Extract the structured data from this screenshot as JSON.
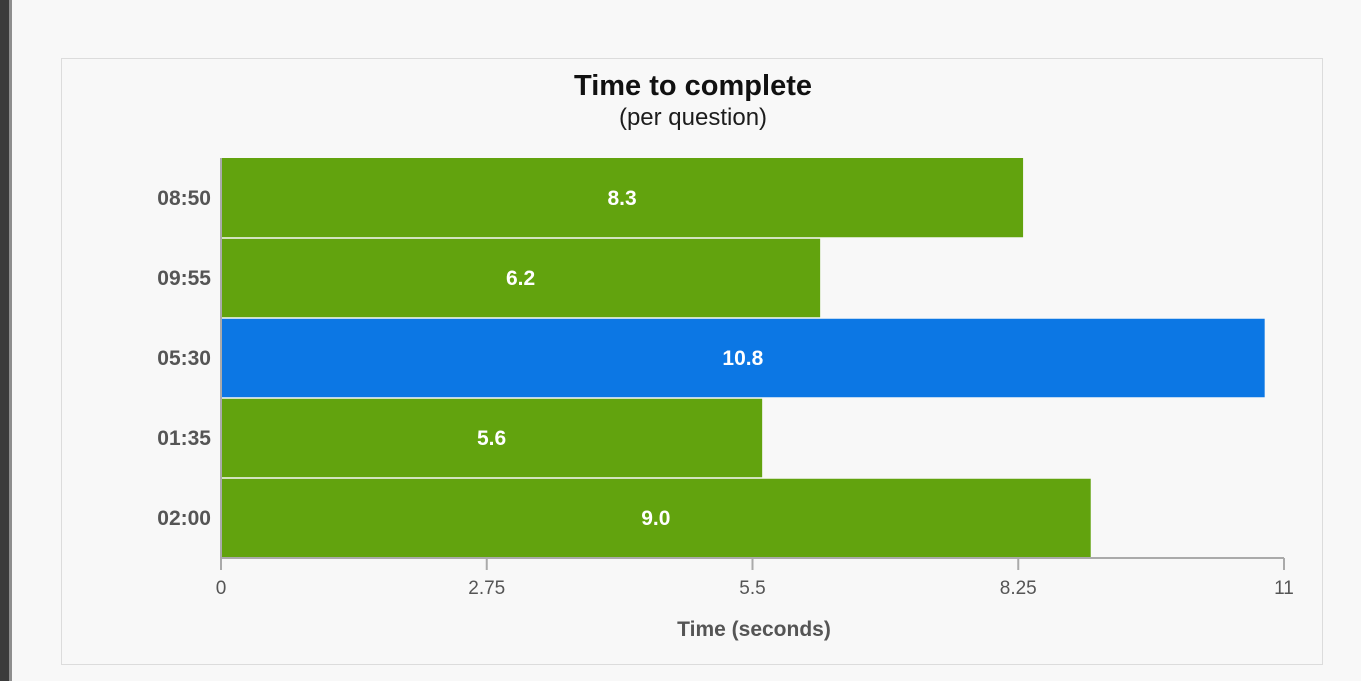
{
  "chart_data": {
    "type": "bar",
    "orientation": "horizontal",
    "title": "Time to complete",
    "subtitle": "(per question)",
    "xlabel": "Time (seconds)",
    "ylabel": "",
    "categories": [
      "08:50",
      "09:55",
      "05:30",
      "01:35",
      "02:00"
    ],
    "values": [
      8.3,
      6.2,
      10.8,
      5.6,
      9.0
    ],
    "data_labels": [
      "8.3",
      "6.2",
      "10.8",
      "5.6",
      "9.0"
    ],
    "highlight_index": 2,
    "xlim": [
      0,
      11
    ],
    "x_ticks": [
      0,
      2.75,
      5.5,
      8.25,
      11
    ],
    "x_tick_labels": [
      "0",
      "2.75",
      "5.5",
      "8.25",
      "11"
    ],
    "grid": false,
    "colors": {
      "bar": "#62a30e",
      "highlight": "#0c77e4",
      "axis": "#aaaaaa"
    }
  }
}
